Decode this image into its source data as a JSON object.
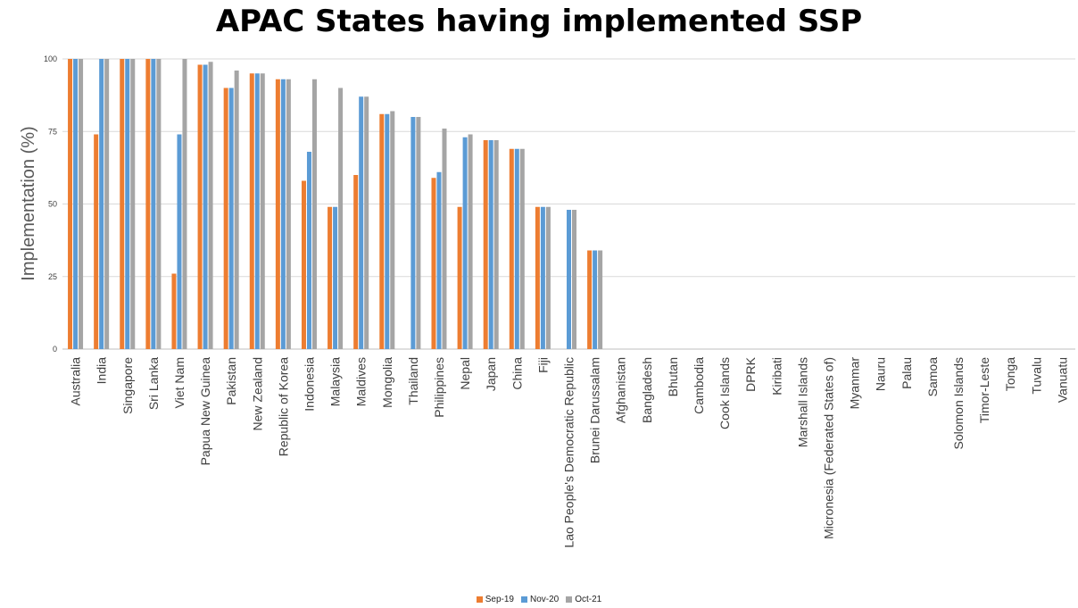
{
  "chart_data": {
    "type": "bar",
    "title": "APAC States having implemented SSP",
    "ylabel": "Implementation (%)",
    "xlabel": "",
    "ylim": [
      0,
      100
    ],
    "yticks": [
      0,
      25,
      50,
      75,
      100
    ],
    "grid": true,
    "legend_position": "bottom",
    "categories": [
      "Australia",
      "India",
      "Singapore",
      "Sri Lanka",
      "Viet Nam",
      "Papua New Guinea",
      "Pakistan",
      "New Zealand",
      "Republic of Korea",
      "Indonesia",
      "Malaysia",
      "Maldives",
      "Mongolia",
      "Thailand",
      "Philippines",
      "Nepal",
      "Japan",
      "China",
      "Fiji",
      "Lao People's Democratic Republic",
      "Brunei Darussalam",
      "Afghanistan",
      "Bangladesh",
      "Bhutan",
      "Cambodia",
      "Cook Islands",
      "DPRK",
      "Kiribati",
      "Marshall Islands",
      "Micronesia (Federated States of)",
      "Myanmar",
      "Nauru",
      "Palau",
      "Samoa",
      "Solomon Islands",
      "Timor-Leste",
      "Tonga",
      "Tuvalu",
      "Vanuatu"
    ],
    "series": [
      {
        "name": "Sep-19",
        "color": "#ED7D31",
        "values": [
          100,
          74,
          100,
          100,
          26,
          98,
          90,
          95,
          93,
          58,
          49,
          60,
          81,
          null,
          59,
          49,
          72,
          69,
          49,
          null,
          34,
          null,
          null,
          null,
          null,
          null,
          null,
          null,
          null,
          null,
          null,
          null,
          null,
          null,
          null,
          null,
          null,
          null,
          null
        ]
      },
      {
        "name": "Nov-20",
        "color": "#5B9BD5",
        "values": [
          100,
          100,
          100,
          100,
          74,
          98,
          90,
          95,
          93,
          68,
          49,
          87,
          81,
          80,
          61,
          73,
          72,
          69,
          49,
          48,
          34,
          null,
          null,
          null,
          null,
          null,
          null,
          null,
          null,
          null,
          null,
          null,
          null,
          null,
          null,
          null,
          null,
          null,
          null
        ]
      },
      {
        "name": "Oct-21",
        "color": "#A5A5A5",
        "values": [
          100,
          100,
          100,
          100,
          100,
          99,
          96,
          95,
          93,
          93,
          90,
          87,
          82,
          80,
          76,
          74,
          72,
          69,
          49,
          48,
          34,
          null,
          null,
          null,
          null,
          null,
          null,
          null,
          null,
          null,
          null,
          null,
          null,
          null,
          null,
          null,
          null,
          null,
          null
        ]
      }
    ]
  }
}
